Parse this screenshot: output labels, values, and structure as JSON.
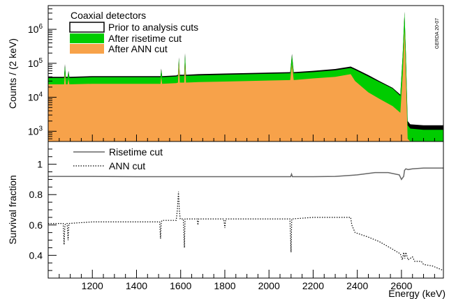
{
  "chart_data": [
    {
      "type": "area",
      "ylabel": "Counts / (2 keV)",
      "yscale": "log",
      "ylim": [
        500,
        5000000
      ],
      "xlim": [
        1000,
        2790
      ],
      "yticks": [
        {
          "value": 1000,
          "base": "10",
          "exp": "3"
        },
        {
          "value": 10000,
          "base": "10",
          "exp": "4"
        },
        {
          "value": 100000,
          "base": "10",
          "exp": "5"
        },
        {
          "value": 1000000,
          "base": "10",
          "exp": "6"
        }
      ],
      "legend": {
        "title": "Coaxial detectors",
        "placement": "top-left",
        "entries": [
          "Prior to analysis cuts",
          "After risetime cut",
          "After ANN cut"
        ]
      },
      "annotation": "GERDA 20-07",
      "series": [
        {
          "name": "Prior to analysis cuts",
          "color": "#000000",
          "x": [
            1000,
            1072,
            1076,
            1080,
            1088,
            1092,
            1096,
            1200,
            1509,
            1512,
            1516,
            1580,
            1588,
            1592,
            1596,
            1616,
            1620,
            1624,
            1680,
            1800,
            2096,
            2104,
            2112,
            2200,
            2300,
            2370,
            2390,
            2450,
            2500,
            2560,
            2595,
            2606,
            2614,
            2620,
            2628,
            2640,
            2700,
            2790
          ],
          "y": [
            40000,
            40000,
            95000,
            40000,
            40000,
            60000,
            40000,
            42000,
            42000,
            70000,
            42000,
            44000,
            46000,
            150000,
            46000,
            46000,
            200000,
            46000,
            48000,
            50000,
            55000,
            190000,
            55000,
            60000,
            68000,
            80000,
            70000,
            45000,
            30000,
            19000,
            12000,
            200000,
            3300000,
            200000,
            2000,
            1600,
            1500,
            1500
          ]
        },
        {
          "name": "After risetime cut",
          "color": "#00cc00",
          "x": [
            1000,
            1072,
            1076,
            1080,
            1088,
            1092,
            1096,
            1200,
            1509,
            1512,
            1516,
            1580,
            1588,
            1592,
            1596,
            1616,
            1620,
            1624,
            1680,
            1800,
            2096,
            2104,
            2112,
            2200,
            2300,
            2370,
            2390,
            2450,
            2500,
            2560,
            2595,
            2606,
            2614,
            2620,
            2628,
            2640,
            2700,
            2790
          ],
          "y": [
            37000,
            37000,
            85000,
            37000,
            37000,
            55000,
            37000,
            39000,
            39000,
            65000,
            39000,
            41000,
            43000,
            140000,
            43000,
            43000,
            185000,
            43000,
            44000,
            46000,
            51000,
            175000,
            51000,
            55000,
            62000,
            73000,
            64000,
            41000,
            28000,
            18000,
            11000,
            190000,
            3200000,
            190000,
            1500,
            1200,
            1100,
            1100
          ]
        },
        {
          "name": "After ANN cut",
          "color": "#f7a24a",
          "x": [
            1000,
            1072,
            1076,
            1080,
            1088,
            1092,
            1096,
            1200,
            1509,
            1512,
            1516,
            1580,
            1588,
            1592,
            1596,
            1616,
            1620,
            1624,
            1680,
            1800,
            2096,
            2104,
            2112,
            2200,
            2300,
            2370,
            2390,
            2450,
            2500,
            2560,
            2595,
            2606,
            2614,
            2620,
            2628,
            2640,
            2700,
            2790
          ],
          "y": [
            24000,
            24000,
            50000,
            24000,
            24000,
            35000,
            24000,
            25000,
            25000,
            40000,
            25000,
            26000,
            27000,
            110000,
            27000,
            27000,
            100000,
            27000,
            28000,
            29000,
            32000,
            95000,
            32000,
            36000,
            40000,
            48000,
            30000,
            14000,
            9000,
            5500,
            3500,
            50000,
            1000000,
            50000,
            600,
            450,
            400,
            350
          ]
        }
      ]
    },
    {
      "type": "line",
      "ylabel": "Survival fraction",
      "xlabel": "Energy (keV)",
      "xlim": [
        1000,
        2790
      ],
      "ylim": [
        0.25,
        1.15
      ],
      "xticks": [
        1200,
        1400,
        1600,
        1800,
        2000,
        2200,
        2400,
        2600
      ],
      "yticks": [
        0.4,
        0.6,
        0.8,
        1
      ],
      "legend": {
        "placement": "top-left",
        "entries": [
          "Risetime cut",
          "ANN cut"
        ]
      },
      "series": [
        {
          "name": "Risetime cut",
          "color": "#666666",
          "style": "solid",
          "x": [
            1000,
            1200,
            1400,
            1600,
            1800,
            2000,
            2098,
            2102,
            2106,
            2200,
            2300,
            2400,
            2480,
            2540,
            2590,
            2600,
            2610,
            2614,
            2620,
            2630,
            2650,
            2700,
            2790
          ],
          "y": [
            0.92,
            0.92,
            0.918,
            0.918,
            0.918,
            0.918,
            0.918,
            0.935,
            0.918,
            0.918,
            0.92,
            0.93,
            0.945,
            0.945,
            0.93,
            0.9,
            0.92,
            0.96,
            0.97,
            0.965,
            0.97,
            0.975,
            0.975
          ]
        },
        {
          "name": "ANN cut",
          "color": "#000000",
          "style": "dotted",
          "x": [
            1000,
            1068,
            1072,
            1076,
            1080,
            1086,
            1090,
            1094,
            1200,
            1505,
            1509,
            1512,
            1516,
            1580,
            1585,
            1590,
            1594,
            1598,
            1612,
            1617,
            1620,
            1624,
            1675,
            1678,
            1682,
            1795,
            1800,
            1804,
            2095,
            2100,
            2103,
            2106,
            2200,
            2300,
            2370,
            2375,
            2390,
            2450,
            2500,
            2560,
            2595,
            2604,
            2610,
            2615,
            2620,
            2630,
            2650,
            2660,
            2690,
            2700,
            2740,
            2790
          ],
          "y": [
            0.61,
            0.61,
            0.47,
            0.6,
            0.61,
            0.61,
            0.5,
            0.61,
            0.62,
            0.62,
            0.51,
            0.62,
            0.63,
            0.63,
            0.7,
            0.82,
            0.7,
            0.64,
            0.64,
            0.45,
            0.64,
            0.64,
            0.64,
            0.6,
            0.64,
            0.64,
            0.58,
            0.64,
            0.64,
            0.42,
            0.64,
            0.64,
            0.65,
            0.65,
            0.65,
            0.6,
            0.55,
            0.52,
            0.49,
            0.44,
            0.41,
            0.37,
            0.42,
            0.38,
            0.42,
            0.37,
            0.39,
            0.36,
            0.36,
            0.34,
            0.33,
            0.3
          ]
        }
      ]
    }
  ]
}
